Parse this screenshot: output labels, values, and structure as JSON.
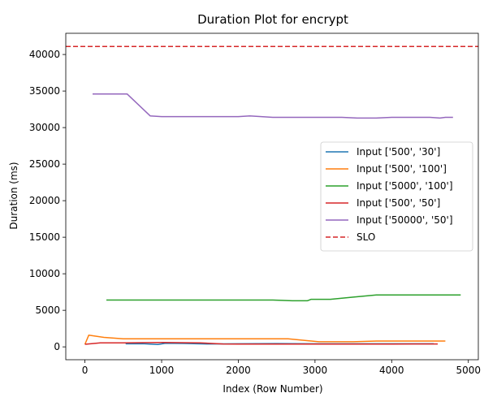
{
  "chart_data": {
    "type": "line",
    "title": "Duration Plot for encrypt",
    "xlabel": "Index (Row Number)",
    "ylabel": "Duration (ms)",
    "xlim": [
      -250,
      5130
    ],
    "ylim": [
      -1760,
      42900
    ],
    "xticks": [
      0,
      1000,
      2000,
      3000,
      4000,
      5000
    ],
    "yticks": [
      0,
      5000,
      10000,
      15000,
      20000,
      25000,
      30000,
      35000,
      40000
    ],
    "grid": false,
    "legend_position": "center-right",
    "slo": {
      "name": "SLO",
      "value": 41100,
      "color": "#d62728",
      "style": "dashed"
    },
    "series": [
      {
        "name": "Input ['500', '30']",
        "color": "#1f77b4",
        "points": [
          [
            530,
            420
          ],
          [
            750,
            440
          ],
          [
            950,
            330
          ],
          [
            1050,
            480
          ],
          [
            1300,
            460
          ],
          [
            1600,
            400
          ],
          [
            2000,
            420
          ],
          [
            2500,
            450
          ],
          [
            3000,
            420
          ],
          [
            3500,
            420
          ],
          [
            4000,
            420
          ],
          [
            4550,
            420
          ]
        ]
      },
      {
        "name": "Input ['500', '100']",
        "color": "#ff7f0e",
        "points": [
          [
            0,
            350
          ],
          [
            50,
            1600
          ],
          [
            250,
            1300
          ],
          [
            500,
            1100
          ],
          [
            1000,
            1100
          ],
          [
            1500,
            1100
          ],
          [
            2000,
            1100
          ],
          [
            2650,
            1100
          ],
          [
            3050,
            700
          ],
          [
            3500,
            700
          ],
          [
            3800,
            800
          ],
          [
            4700,
            800
          ]
        ]
      },
      {
        "name": "Input ['5000', '100']",
        "color": "#2ca02c",
        "points": [
          [
            280,
            6400
          ],
          [
            800,
            6400
          ],
          [
            1300,
            6400
          ],
          [
            2000,
            6400
          ],
          [
            2450,
            6400
          ],
          [
            2700,
            6300
          ],
          [
            2900,
            6300
          ],
          [
            2950,
            6500
          ],
          [
            3200,
            6500
          ],
          [
            3500,
            6800
          ],
          [
            3800,
            7100
          ],
          [
            4500,
            7100
          ],
          [
            4900,
            7100
          ]
        ]
      },
      {
        "name": "Input ['500', '50']",
        "color": "#d62728",
        "points": [
          [
            0,
            350
          ],
          [
            200,
            550
          ],
          [
            500,
            550
          ],
          [
            1000,
            600
          ],
          [
            1500,
            550
          ],
          [
            1800,
            400
          ],
          [
            2000,
            380
          ],
          [
            2500,
            380
          ],
          [
            3000,
            380
          ],
          [
            3500,
            380
          ],
          [
            4000,
            380
          ],
          [
            4600,
            400
          ]
        ]
      },
      {
        "name": "Input ['50000', '50']",
        "color": "#9467bd",
        "points": [
          [
            100,
            34600
          ],
          [
            300,
            34600
          ],
          [
            550,
            34600
          ],
          [
            850,
            31600
          ],
          [
            1000,
            31500
          ],
          [
            1500,
            31500
          ],
          [
            2000,
            31500
          ],
          [
            2150,
            31600
          ],
          [
            2450,
            31400
          ],
          [
            3000,
            31400
          ],
          [
            3350,
            31400
          ],
          [
            3550,
            31300
          ],
          [
            3800,
            31300
          ],
          [
            4000,
            31400
          ],
          [
            4500,
            31400
          ],
          [
            4630,
            31300
          ],
          [
            4700,
            31400
          ],
          [
            4800,
            31400
          ]
        ]
      }
    ]
  }
}
